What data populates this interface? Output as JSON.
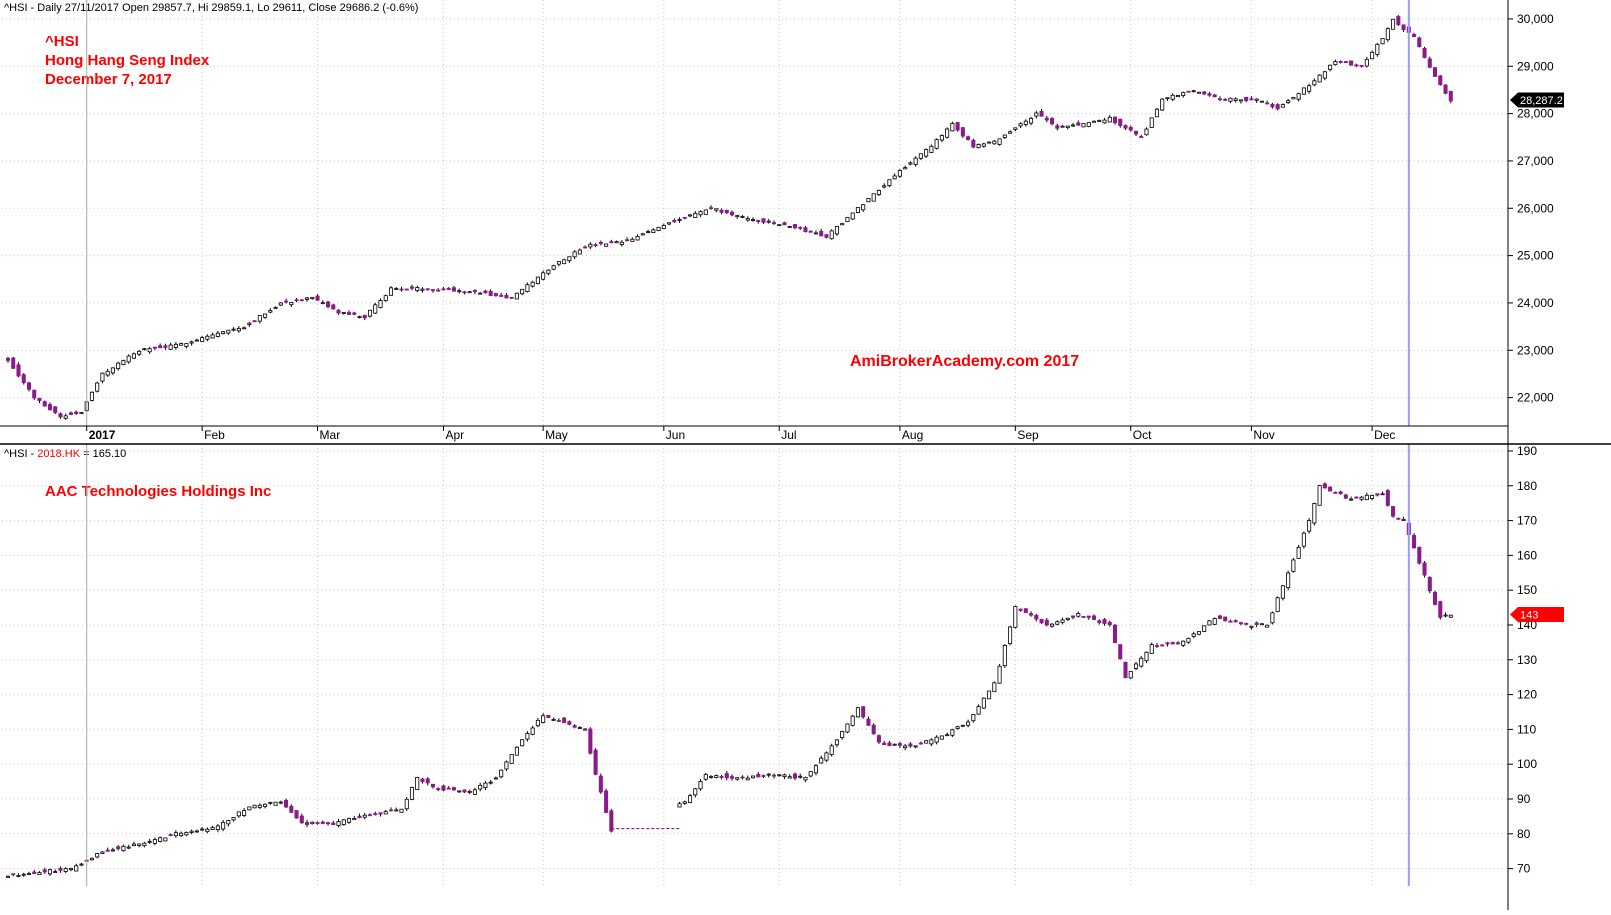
{
  "app": {
    "top_header": "^HSI - Daily 27/11/2017 Open 29857.7, Hi 29859.1, Lo 29611, Close 29686.2 (-0.6%)",
    "bottom_header_prefix": "^HSI - ",
    "bottom_header_symbol": "2018.HK",
    "bottom_header_value": " = 165.10",
    "watermark": "AmiBrokerAcademy.com  2017"
  },
  "colors": {
    "bull_fill": "#ffffff",
    "bear_fill": "#8b1a8b",
    "candle_outline": "#000000",
    "annotation_red": "#ff0000",
    "grid": "#cccccc",
    "cursor_line": "#9999ff",
    "price_tag_top": "#000000",
    "price_tag_bottom": "#ff0000"
  },
  "chart_data": [
    {
      "type": "candlestick",
      "title": "^HSI",
      "subtitle_lines": [
        "Hong Hang Seng Index",
        "December 7, 2017"
      ],
      "ylim": [
        21400,
        30400
      ],
      "yticks": [
        22000,
        23000,
        24000,
        25000,
        26000,
        27000,
        28000,
        29000,
        30000
      ],
      "ytick_labels": [
        "22,000",
        "23,000",
        "24,000",
        "25,000",
        "26,000",
        "27,000",
        "28,000",
        "29,000",
        "30,000"
      ],
      "last_value_label": "28,287.2",
      "last_value": 28287.2,
      "series": [
        {
          "name": "^HSI",
          "anchors": [
            [
              0,
              22800
            ],
            [
              5,
              22000
            ],
            [
              10,
              21600
            ],
            [
              14,
              21700
            ],
            [
              18,
              22500
            ],
            [
              25,
              23000
            ],
            [
              32,
              23100
            ],
            [
              38,
              23300
            ],
            [
              45,
              23500
            ],
            [
              52,
              24000
            ],
            [
              58,
              24100
            ],
            [
              63,
              23800
            ],
            [
              68,
              23700
            ],
            [
              73,
              24300
            ],
            [
              80,
              24300
            ],
            [
              88,
              24250
            ],
            [
              96,
              24100
            ],
            [
              104,
              24800
            ],
            [
              110,
              25200
            ],
            [
              118,
              25300
            ],
            [
              126,
              25700
            ],
            [
              134,
              26000
            ],
            [
              140,
              25800
            ],
            [
              150,
              25600
            ],
            [
              156,
              25400
            ],
            [
              160,
              25800
            ],
            [
              164,
              26200
            ],
            [
              170,
              26800
            ],
            [
              176,
              27300
            ],
            [
              180,
              27800
            ],
            [
              184,
              27300
            ],
            [
              188,
              27400
            ],
            [
              192,
              27700
            ],
            [
              196,
              28000
            ],
            [
              200,
              27700
            ],
            [
              206,
              27800
            ],
            [
              210,
              27900
            ],
            [
              216,
              27500
            ],
            [
              220,
              28300
            ],
            [
              226,
              28500
            ],
            [
              232,
              28300
            ],
            [
              238,
              28300
            ],
            [
              242,
              28100
            ],
            [
              248,
              28600
            ],
            [
              253,
              29100
            ],
            [
              258,
              29000
            ],
            [
              262,
              29600
            ],
            [
              264,
              30000
            ],
            [
              266,
              29800
            ],
            [
              268,
              29600
            ],
            [
              270,
              29200
            ],
            [
              273,
              28600
            ],
            [
              275,
              28290
            ]
          ]
        }
      ]
    },
    {
      "type": "candlestick",
      "title": "AAC Technologies Holdings Inc",
      "ylim": [
        65,
        192
      ],
      "yticks": [
        70,
        80,
        90,
        100,
        110,
        120,
        130,
        140,
        150,
        160,
        170,
        180,
        190
      ],
      "ytick_labels": [
        "70",
        "80",
        "90",
        "100",
        "110",
        "120",
        "130",
        "140",
        "150",
        "160",
        "170",
        "180",
        "190"
      ],
      "last_value_label": "143",
      "last_value": 143,
      "flat_segment": {
        "x_start_day": 115,
        "x_end_day": 128,
        "value": 81.5
      },
      "series": [
        {
          "name": "2018.HK",
          "anchors": [
            [
              0,
              68
            ],
            [
              12,
              70
            ],
            [
              18,
              75
            ],
            [
              25,
              77
            ],
            [
              32,
              80
            ],
            [
              40,
              82
            ],
            [
              46,
              88
            ],
            [
              52,
              89
            ],
            [
              56,
              83
            ],
            [
              62,
              83
            ],
            [
              68,
              85
            ],
            [
              75,
              87
            ],
            [
              78,
              96
            ],
            [
              82,
              93
            ],
            [
              88,
              92
            ],
            [
              93,
              96
            ],
            [
              98,
              107
            ],
            [
              102,
              114
            ],
            [
              106,
              112
            ],
            [
              110,
              110
            ],
            [
              112,
              97
            ],
            [
              115,
              81
            ],
            [
              129,
              89
            ],
            [
              133,
              97
            ],
            [
              140,
              96
            ],
            [
              146,
              97
            ],
            [
              152,
              96
            ],
            [
              157,
              105
            ],
            [
              162,
              116
            ],
            [
              166,
              106
            ],
            [
              172,
              105
            ],
            [
              178,
              108
            ],
            [
              183,
              112
            ],
            [
              188,
              123
            ],
            [
              192,
              145
            ],
            [
              198,
              140
            ],
            [
              204,
              143
            ],
            [
              210,
              140
            ],
            [
              213,
              125
            ],
            [
              218,
              134
            ],
            [
              224,
              135
            ],
            [
              230,
              142
            ],
            [
              236,
              140
            ],
            [
              240,
              140
            ],
            [
              244,
              155
            ],
            [
              248,
              170
            ],
            [
              250,
              180
            ],
            [
              256,
              176
            ],
            [
              262,
              178
            ],
            [
              264,
              171
            ],
            [
              266,
              170
            ],
            [
              268,
              162
            ],
            [
              271,
              150
            ],
            [
              273,
              142
            ],
            [
              275,
              143
            ]
          ]
        }
      ]
    }
  ],
  "x_axis": {
    "labels": [
      "2017",
      "Feb",
      "Mar",
      "Apr",
      "May",
      "Jun",
      "Jul",
      "Aug",
      "Sep",
      "Oct",
      "Nov",
      "Dec"
    ],
    "label_days": [
      15,
      37,
      59,
      83,
      102,
      125,
      147,
      170,
      192,
      214,
      237,
      260
    ],
    "year_marker_day": 15,
    "cursor_day": 267,
    "total_days": 285
  }
}
